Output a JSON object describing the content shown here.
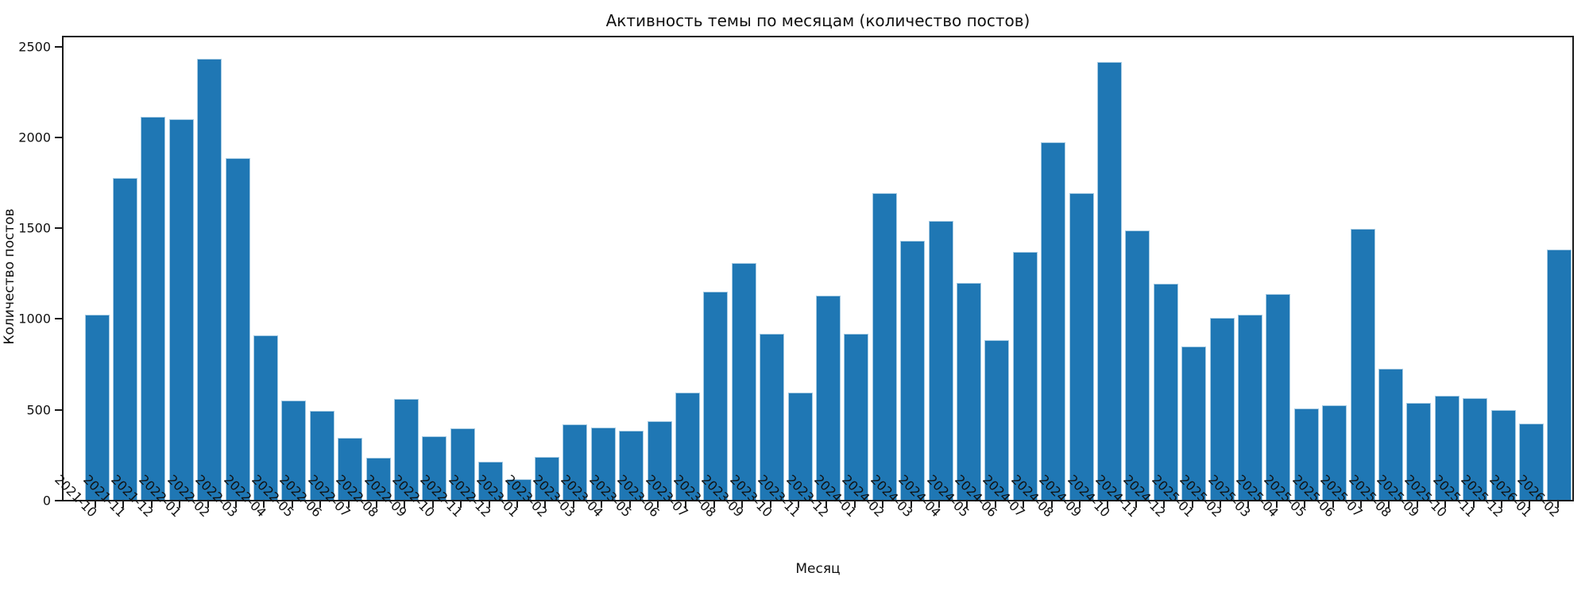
{
  "figure": {
    "title": "Активность темы по месяцам (количество постов)",
    "xlabel": "Месяц",
    "ylabel": "Количество постов"
  },
  "chart_data": {
    "type": "bar",
    "title": "Активность темы по месяцам (количество постов)",
    "xlabel": "Месяц",
    "ylabel": "Количество постов",
    "categories": [
      "2021-10",
      "2021-11",
      "2021-12",
      "2022-01",
      "2022-02",
      "2022-03",
      "2022-04",
      "2022-05",
      "2022-06",
      "2022-07",
      "2022-08",
      "2022-09",
      "2022-10",
      "2022-11",
      "2022-12",
      "2023-01",
      "2023-02",
      "2023-03",
      "2023-04",
      "2023-05",
      "2023-06",
      "2023-07",
      "2023-08",
      "2023-09",
      "2023-10",
      "2023-11",
      "2023-12",
      "2024-01",
      "2024-02",
      "2024-03",
      "2024-04",
      "2024-05",
      "2024-06",
      "2024-07",
      "2024-08",
      "2024-09",
      "2024-10",
      "2024-11",
      "2024-12",
      "2025-01",
      "2025-02",
      "2025-03",
      "2025-04",
      "2025-05",
      "2025-06",
      "2025-07",
      "2025-08",
      "2025-09",
      "2025-10",
      "2025-11",
      "2025-12",
      "2026-01",
      "2026-02"
    ],
    "values": [
      1020,
      1770,
      2110,
      2095,
      2430,
      1880,
      905,
      545,
      490,
      340,
      230,
      555,
      350,
      395,
      210,
      115,
      235,
      415,
      400,
      380,
      435,
      590,
      1145,
      1305,
      915,
      590,
      1125,
      915,
      1690,
      1425,
      1535,
      1195,
      880,
      1365,
      1970,
      1690,
      2410,
      1485,
      1190,
      845,
      1000,
      1020,
      1135,
      505,
      520,
      1490,
      720,
      535,
      575,
      560,
      495,
      420,
      1380
    ],
    "yticks": [
      0,
      500,
      1000,
      1500,
      2000,
      2500
    ],
    "ylim": [
      0,
      2500
    ],
    "grid": false,
    "legend": null,
    "bar_color": "#1f77b4",
    "bar_edge_color": "#a6cbe3",
    "axis_color": "#1a1a1a",
    "background": "#ffffff"
  }
}
